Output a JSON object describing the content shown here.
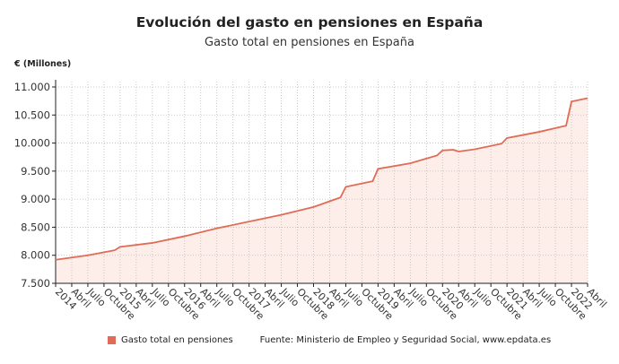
{
  "chart_data": {
    "type": "area",
    "title": "Evolución del gasto en pensiones en España",
    "subtitle": "Gasto total en pensiones en España",
    "ylabel": "€ (Millones)",
    "xlabel": "",
    "ylim": [
      7500,
      11000
    ],
    "yticks": [
      "7.500",
      "8.000",
      "8.500",
      "9.000",
      "9.500",
      "10.000",
      "10.500",
      "11.000"
    ],
    "ytick_values": [
      7500,
      8000,
      8500,
      9000,
      9500,
      10000,
      10500,
      11000
    ],
    "xticks": [
      "2014",
      "Abril",
      "Julio",
      "Octubre",
      "2015",
      "Abril",
      "Julio",
      "Octubre",
      "2016",
      "Abril",
      "Julio",
      "Octubre",
      "2017",
      "Abril",
      "Julio",
      "Octubre",
      "2018",
      "Abril",
      "Julio",
      "Octubre",
      "2019",
      "Abril",
      "Julio",
      "Octubre",
      "2020",
      "Abril",
      "Julio",
      "Octubre",
      "2021",
      "Abril",
      "Julio",
      "Octubre",
      "2022",
      "Abril"
    ],
    "xrange": [
      "2014-01",
      "2022-04"
    ],
    "grid": true,
    "legend_position": "bottom",
    "series": [
      {
        "name": "Gasto total en pensiones",
        "color": "#e06c55",
        "fill": "#fdeeea",
        "points": [
          [
            "2014-01",
            7920
          ],
          [
            "2014-07",
            8000
          ],
          [
            "2014-12",
            8090
          ],
          [
            "2015-01",
            8150
          ],
          [
            "2015-07",
            8220
          ],
          [
            "2016-01",
            8340
          ],
          [
            "2016-07",
            8480
          ],
          [
            "2017-01",
            8600
          ],
          [
            "2017-07",
            8720
          ],
          [
            "2018-01",
            8860
          ],
          [
            "2018-06",
            9030
          ],
          [
            "2018-07",
            9220
          ],
          [
            "2018-12",
            9320
          ],
          [
            "2019-01",
            9540
          ],
          [
            "2019-07",
            9640
          ],
          [
            "2019-12",
            9780
          ],
          [
            "2020-01",
            9870
          ],
          [
            "2020-03",
            9880
          ],
          [
            "2020-04",
            9850
          ],
          [
            "2020-07",
            9890
          ],
          [
            "2020-12",
            9990
          ],
          [
            "2021-01",
            10090
          ],
          [
            "2021-07",
            10200
          ],
          [
            "2021-12",
            10310
          ],
          [
            "2022-01",
            10740
          ],
          [
            "2022-04",
            10800
          ]
        ]
      }
    ]
  },
  "legend": {
    "label": "Gasto total en pensiones"
  },
  "source": "Fuente: Ministerio de Empleo y Seguridad Social, www.epdata.es"
}
